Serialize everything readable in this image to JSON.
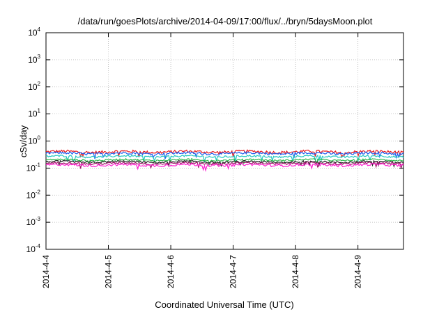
{
  "chart_data": {
    "type": "line",
    "title": "/data/run/goesPlots/archive/2014-04-09/17:00/flux/../bryn/5daysMoon.plot",
    "xlabel": "Coordinated Universal Time (UTC)",
    "ylabel": "cSv/day",
    "yscale": "log",
    "ylim": [
      0.0001,
      10000
    ],
    "xlim": [
      0,
      5.73
    ],
    "x_tick_labels": [
      "2014-4-4",
      "2014-4-5",
      "2014-4-6",
      "2014-4-7",
      "2014-4-8",
      "2014-4-9"
    ],
    "x_tick_values": [
      0,
      1,
      2,
      3,
      4,
      5
    ],
    "y_ticks": [
      {
        "base": "10",
        "exp": "-4",
        "value": 0.0001
      },
      {
        "base": "10",
        "exp": "-3",
        "value": 0.001
      },
      {
        "base": "10",
        "exp": "-2",
        "value": 0.01
      },
      {
        "base": "10",
        "exp": "-1",
        "value": 0.1
      },
      {
        "base": "10",
        "exp": "0",
        "value": 1
      },
      {
        "base": "10",
        "exp": "1",
        "value": 10
      },
      {
        "base": "10",
        "exp": "2",
        "value": 100
      },
      {
        "base": "10",
        "exp": "3",
        "value": 1000
      },
      {
        "base": "10",
        "exp": "4",
        "value": 10000
      }
    ],
    "grid": true,
    "series": [
      {
        "color": "#e8191f",
        "level": 0.4,
        "jitter": 0.12
      },
      {
        "color": "#1a5cf0",
        "level": 0.35,
        "jitter": 0.1
      },
      {
        "color": "#22c7c0",
        "level": 0.27,
        "jitter": 0.08
      },
      {
        "color": "#2bb84a",
        "level": 0.2,
        "jitter": 0.07
      },
      {
        "color": "#222222",
        "level": 0.17,
        "jitter": 0.07
      },
      {
        "color": "#a0186a",
        "level": 0.15,
        "jitter": 0.08
      },
      {
        "color": "#ff1fd1",
        "level": 0.13,
        "jitter": 0.1
      }
    ]
  }
}
